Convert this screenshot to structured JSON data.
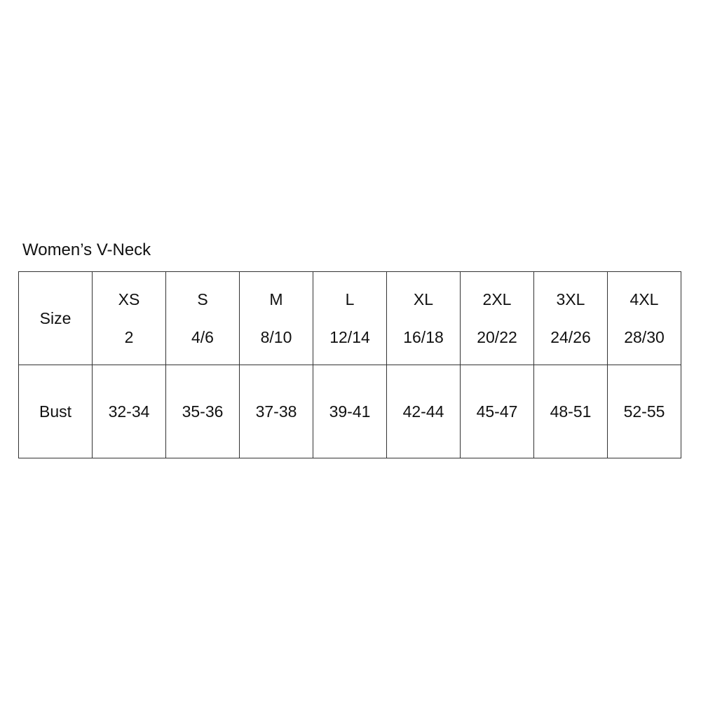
{
  "title": "Women’s V-Neck",
  "size_label": "Size",
  "bust_label": "Bust",
  "sizes": [
    {
      "letter": "XS",
      "number": "2"
    },
    {
      "letter": "S",
      "number": "4/6"
    },
    {
      "letter": "M",
      "number": "8/10"
    },
    {
      "letter": "L",
      "number": "12/14"
    },
    {
      "letter": "XL",
      "number": "16/18"
    },
    {
      "letter": "2XL",
      "number": "20/22"
    },
    {
      "letter": "3XL",
      "number": "24/26"
    },
    {
      "letter": "4XL",
      "number": "28/30"
    }
  ],
  "bust": [
    "32-34",
    "35-36",
    "37-38",
    "39-41",
    "42-44",
    "45-47",
    "48-51",
    "52-55"
  ]
}
